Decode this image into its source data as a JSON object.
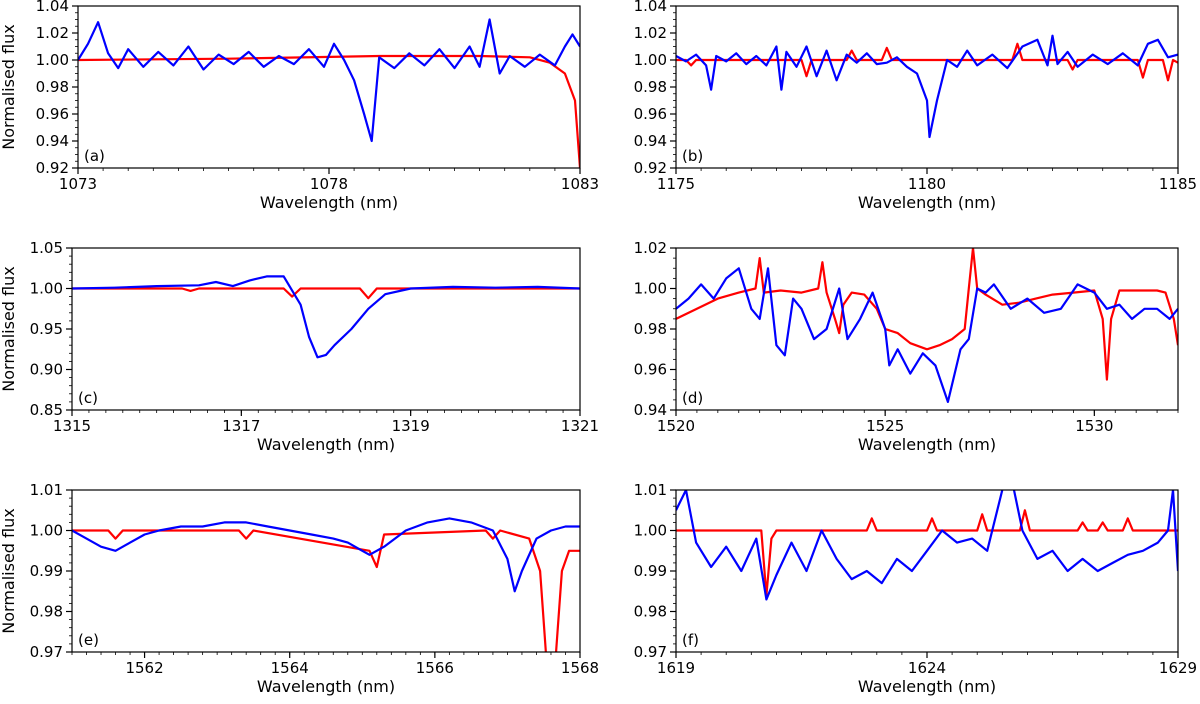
{
  "colors": {
    "model": "#ff0000",
    "observed": "#0000ff",
    "axis": "#000000"
  },
  "chart_data": [
    {
      "type": "line",
      "panel_label": "(a)",
      "xlabel": "Wavelength (nm)",
      "ylabel": "Normalised flux",
      "xlim": [
        1073,
        1083
      ],
      "ylim": [
        0.92,
        1.04
      ],
      "xticks": [
        1073,
        1078,
        1083
      ],
      "xticklabels": [
        "1073",
        "1078",
        "1083"
      ],
      "xminor_step": 0.5,
      "yticks": [
        0.92,
        0.94,
        0.96,
        0.98,
        1.0,
        1.02,
        1.04
      ],
      "yticklabels": [
        "0.92",
        "0.94",
        "0.96",
        "0.98",
        "1.00",
        "1.02",
        "1.04"
      ],
      "yminor_step": 0.005,
      "series": [
        {
          "color": "#ff0000",
          "x": [
            1073,
            1076,
            1079,
            1081,
            1082,
            1082.4,
            1082.7,
            1082.9,
            1083
          ],
          "y": [
            1.0,
            1.001,
            1.003,
            1.003,
            1.002,
            0.998,
            0.99,
            0.97,
            0.92
          ]
        },
        {
          "color": "#0000ff",
          "x": [
            1073,
            1073.2,
            1073.4,
            1073.6,
            1073.8,
            1074.0,
            1074.3,
            1074.6,
            1074.9,
            1075.2,
            1075.5,
            1075.8,
            1076.1,
            1076.4,
            1076.7,
            1077.0,
            1077.3,
            1077.6,
            1077.9,
            1078.1,
            1078.3,
            1078.5,
            1078.7,
            1078.85,
            1079.0,
            1079.3,
            1079.6,
            1079.9,
            1080.2,
            1080.5,
            1080.8,
            1081.0,
            1081.2,
            1081.4,
            1081.6,
            1081.9,
            1082.2,
            1082.5,
            1082.7,
            1082.85,
            1083
          ],
          "y": [
            1.0,
            1.012,
            1.028,
            1.005,
            0.994,
            1.008,
            0.995,
            1.006,
            0.996,
            1.01,
            0.993,
            1.004,
            0.997,
            1.006,
            0.995,
            1.003,
            0.997,
            1.008,
            0.995,
            1.012,
            1.0,
            0.985,
            0.96,
            0.94,
            1.002,
            0.994,
            1.005,
            0.996,
            1.008,
            0.994,
            1.01,
            0.995,
            1.03,
            0.99,
            1.003,
            0.995,
            1.004,
            0.996,
            1.01,
            1.019,
            1.01
          ]
        }
      ]
    },
    {
      "type": "line",
      "panel_label": "(b)",
      "xlabel": "Wavelength (nm)",
      "ylabel": "",
      "xlim": [
        1175,
        1185
      ],
      "ylim": [
        0.92,
        1.04
      ],
      "xticks": [
        1175,
        1180,
        1185
      ],
      "xticklabels": [
        "1175",
        "1180",
        "1185"
      ],
      "xminor_step": 0.5,
      "yticks": [
        0.92,
        0.94,
        0.96,
        0.98,
        1.0,
        1.02,
        1.04
      ],
      "yticklabels": [
        "0.92",
        "0.94",
        "0.96",
        "0.98",
        "1.00",
        "1.02",
        "1.04"
      ],
      "yminor_step": 0.005,
      "series": [
        {
          "color": "#ff0000",
          "x": [
            1175,
            1175.2,
            1175.3,
            1175.4,
            1177.5,
            1177.6,
            1177.7,
            1178.4,
            1178.5,
            1178.6,
            1179.1,
            1179.2,
            1179.3,
            1181.7,
            1181.8,
            1181.9,
            1182.8,
            1182.9,
            1183.0,
            1184.2,
            1184.3,
            1184.4,
            1184.7,
            1184.8,
            1184.9,
            1185
          ],
          "y": [
            1.0,
            1.0,
            0.996,
            1.0,
            1.0,
            0.988,
            1.0,
            1.0,
            1.007,
            1.0,
            1.0,
            1.009,
            1.0,
            1.0,
            1.012,
            1.0,
            1.0,
            0.993,
            1.0,
            1.0,
            0.987,
            1.0,
            1.0,
            0.985,
            1.0,
            0.998
          ]
        },
        {
          "color": "#0000ff",
          "x": [
            1175,
            1175.2,
            1175.4,
            1175.6,
            1175.7,
            1175.8,
            1176.0,
            1176.2,
            1176.4,
            1176.6,
            1176.8,
            1177.0,
            1177.1,
            1177.2,
            1177.4,
            1177.6,
            1177.8,
            1178.0,
            1178.2,
            1178.4,
            1178.6,
            1178.8,
            1179.0,
            1179.2,
            1179.4,
            1179.6,
            1179.8,
            1180.0,
            1180.05,
            1180.2,
            1180.4,
            1180.6,
            1180.8,
            1181.0,
            1181.3,
            1181.6,
            1181.9,
            1182.2,
            1182.4,
            1182.5,
            1182.6,
            1182.8,
            1183.0,
            1183.3,
            1183.6,
            1183.9,
            1184.2,
            1184.4,
            1184.6,
            1184.8,
            1185
          ],
          "y": [
            1.003,
            0.999,
            1.004,
            0.996,
            0.978,
            1.003,
            0.999,
            1.005,
            0.997,
            1.003,
            0.996,
            1.01,
            0.978,
            1.006,
            0.995,
            1.01,
            0.988,
            1.007,
            0.985,
            1.004,
            0.998,
            1.005,
            0.997,
            0.998,
            1.002,
            0.995,
            0.99,
            0.97,
            0.943,
            0.97,
            1.0,
            0.995,
            1.007,
            0.996,
            1.004,
            0.994,
            1.01,
            1.015,
            0.996,
            1.018,
            0.997,
            1.006,
            0.995,
            1.004,
            0.997,
            1.005,
            0.996,
            1.012,
            1.015,
            1.002,
            1.004
          ]
        }
      ]
    },
    {
      "type": "line",
      "panel_label": "(c)",
      "xlabel": "Wavelength (nm)",
      "ylabel": "Normalised flux",
      "xlim": [
        1315,
        1321
      ],
      "ylim": [
        0.85,
        1.05
      ],
      "xticks": [
        1315,
        1317,
        1319,
        1321
      ],
      "xticklabels": [
        "1315",
        "1317",
        "1319",
        "1321"
      ],
      "xminor_step": 0.2,
      "yticks": [
        0.85,
        0.9,
        0.95,
        1.0,
        1.05
      ],
      "yticklabels": [
        "0.85",
        "0.90",
        "0.95",
        "1.00",
        "1.05"
      ],
      "yminor_step": 0.01,
      "series": [
        {
          "color": "#ff0000",
          "x": [
            1315,
            1316.3,
            1316.4,
            1316.5,
            1317.5,
            1317.6,
            1317.7,
            1318.4,
            1318.5,
            1318.6,
            1321
          ],
          "y": [
            1.0,
            1.0,
            0.997,
            1.0,
            1.0,
            0.99,
            1.0,
            1.0,
            0.988,
            1.0,
            1.0
          ]
        },
        {
          "color": "#0000ff",
          "x": [
            1315,
            1315.5,
            1316.0,
            1316.5,
            1316.7,
            1316.9,
            1317.1,
            1317.3,
            1317.5,
            1317.7,
            1317.8,
            1317.9,
            1318.0,
            1318.1,
            1318.3,
            1318.5,
            1318.7,
            1319.0,
            1319.5,
            1320.0,
            1320.5,
            1321
          ],
          "y": [
            1.0,
            1.001,
            1.003,
            1.004,
            1.008,
            1.003,
            1.01,
            1.015,
            1.015,
            0.98,
            0.94,
            0.915,
            0.918,
            0.93,
            0.95,
            0.975,
            0.993,
            1.0,
            1.002,
            1.001,
            1.002,
            1.0
          ]
        }
      ]
    },
    {
      "type": "line",
      "panel_label": "(d)",
      "xlabel": "Wavelength (nm)",
      "ylabel": "",
      "xlim": [
        1520,
        1532
      ],
      "ylim": [
        0.94,
        1.02
      ],
      "xticks": [
        1520,
        1525,
        1530
      ],
      "xticklabels": [
        "1520",
        "1525",
        "1530"
      ],
      "xminor_step": 0.5,
      "yticks": [
        0.94,
        0.96,
        0.98,
        1.0,
        1.02
      ],
      "yticklabels": [
        "0.94",
        "0.96",
        "0.98",
        "1.00",
        "1.02"
      ],
      "yminor_step": 0.005,
      "series": [
        {
          "color": "#ff0000",
          "x": [
            1520,
            1520.5,
            1521,
            1521.5,
            1521.9,
            1522.0,
            1522.1,
            1522.5,
            1523.0,
            1523.4,
            1523.5,
            1523.6,
            1523.8,
            1523.9,
            1524.0,
            1524.2,
            1524.5,
            1524.8,
            1525.0,
            1525.3,
            1525.6,
            1526.0,
            1526.3,
            1526.6,
            1526.9,
            1527.0,
            1527.1,
            1527.2,
            1527.4,
            1527.8,
            1528.2,
            1528.6,
            1529.0,
            1529.5,
            1530.0,
            1530.2,
            1530.3,
            1530.4,
            1530.6,
            1531.0,
            1531.5,
            1531.7,
            1531.9,
            1532
          ],
          "y": [
            0.985,
            0.99,
            0.995,
            0.998,
            1.0,
            1.015,
            0.998,
            0.999,
            0.998,
            1.0,
            1.013,
            0.998,
            0.985,
            0.978,
            0.992,
            0.998,
            0.997,
            0.99,
            0.98,
            0.978,
            0.973,
            0.97,
            0.972,
            0.975,
            0.98,
            1.0,
            1.02,
            1.0,
            0.997,
            0.992,
            0.993,
            0.995,
            0.997,
            0.998,
            0.999,
            0.985,
            0.955,
            0.985,
            0.999,
            0.999,
            0.999,
            0.998,
            0.985,
            0.972
          ]
        },
        {
          "color": "#0000ff",
          "x": [
            1520,
            1520.3,
            1520.6,
            1520.9,
            1521.2,
            1521.5,
            1521.8,
            1522.0,
            1522.2,
            1522.4,
            1522.6,
            1522.8,
            1523.0,
            1523.3,
            1523.6,
            1523.9,
            1524.1,
            1524.4,
            1524.7,
            1525.0,
            1525.1,
            1525.3,
            1525.6,
            1525.9,
            1526.2,
            1526.5,
            1526.8,
            1527.0,
            1527.2,
            1527.4,
            1527.6,
            1528.0,
            1528.4,
            1528.8,
            1529.2,
            1529.6,
            1530.0,
            1530.3,
            1530.6,
            1530.9,
            1531.2,
            1531.5,
            1531.8,
            1532
          ],
          "y": [
            0.99,
            0.995,
            1.002,
            0.995,
            1.005,
            1.01,
            0.99,
            0.985,
            1.01,
            0.972,
            0.967,
            0.995,
            0.99,
            0.975,
            0.98,
            1.0,
            0.975,
            0.985,
            0.998,
            0.98,
            0.962,
            0.97,
            0.958,
            0.968,
            0.962,
            0.944,
            0.97,
            0.975,
            1.0,
            0.998,
            1.002,
            0.99,
            0.995,
            0.988,
            0.99,
            1.002,
            0.998,
            0.99,
            0.992,
            0.985,
            0.99,
            0.99,
            0.985,
            0.99
          ]
        }
      ]
    },
    {
      "type": "line",
      "panel_label": "(e)",
      "xlabel": "Wavelength (nm)",
      "ylabel": "Normalised flux",
      "xlim": [
        1561,
        1568
      ],
      "ylim": [
        0.97,
        1.01
      ],
      "xticks": [
        1562,
        1564,
        1566,
        1568
      ],
      "xticklabels": [
        "1562",
        "1564",
        "1566",
        "1568"
      ],
      "xminor_step": 0.2,
      "yticks": [
        0.97,
        0.98,
        0.99,
        1.0,
        1.01
      ],
      "yticklabels": [
        "0.97",
        "0.98",
        "0.99",
        "1.00",
        "1.01"
      ],
      "yminor_step": 0.002,
      "series": [
        {
          "color": "#ff0000",
          "x": [
            1561,
            1561.5,
            1561.6,
            1561.7,
            1563.3,
            1563.4,
            1563.5,
            1565.1,
            1565.2,
            1565.3,
            1566.7,
            1566.8,
            1566.9,
            1567.3,
            1567.45,
            1567.55,
            1567.65,
            1567.75,
            1567.85,
            1568
          ],
          "y": [
            1.0,
            1.0,
            0.998,
            1.0,
            1.0,
            0.998,
            1.0,
            0.995,
            0.991,
            0.999,
            1.0,
            0.998,
            1.0,
            0.998,
            0.99,
            0.965,
            0.965,
            0.99,
            0.995,
            0.995
          ]
        },
        {
          "color": "#0000ff",
          "x": [
            1561,
            1561.2,
            1561.4,
            1561.6,
            1561.8,
            1562.0,
            1562.2,
            1562.5,
            1562.8,
            1563.1,
            1563.4,
            1563.7,
            1564.0,
            1564.3,
            1564.6,
            1564.8,
            1565.0,
            1565.1,
            1565.3,
            1565.6,
            1565.9,
            1566.2,
            1566.5,
            1566.8,
            1567.0,
            1567.1,
            1567.2,
            1567.4,
            1567.6,
            1567.8,
            1568
          ],
          "y": [
            1.0,
            0.998,
            0.996,
            0.995,
            0.997,
            0.999,
            1.0,
            1.001,
            1.001,
            1.002,
            1.002,
            1.001,
            1.0,
            0.999,
            0.998,
            0.997,
            0.995,
            0.994,
            0.996,
            1.0,
            1.002,
            1.003,
            1.002,
            1.0,
            0.993,
            0.985,
            0.99,
            0.998,
            1.0,
            1.001,
            1.001
          ]
        }
      ]
    },
    {
      "type": "line",
      "panel_label": "(f)",
      "xlabel": "Wavelength (nm)",
      "ylabel": "",
      "xlim": [
        1619,
        1629
      ],
      "ylim": [
        0.97,
        1.01
      ],
      "xticks": [
        1619,
        1624,
        1629
      ],
      "xticklabels": [
        "1619",
        "1624",
        "1629"
      ],
      "xminor_step": 0.5,
      "yticks": [
        0.97,
        0.98,
        0.99,
        1.0,
        1.01
      ],
      "yticklabels": [
        "0.97",
        "0.98",
        "0.99",
        "1.00",
        "1.01"
      ],
      "yminor_step": 0.002,
      "series": [
        {
          "color": "#ff0000",
          "x": [
            1619,
            1620.7,
            1620.8,
            1620.9,
            1621.0,
            1622.8,
            1622.9,
            1623.0,
            1624.0,
            1624.1,
            1624.2,
            1625.0,
            1625.1,
            1625.2,
            1625.85,
            1625.95,
            1626.05,
            1627.0,
            1627.1,
            1627.2,
            1627.4,
            1627.5,
            1627.6,
            1627.9,
            1628.0,
            1628.1,
            1629
          ],
          "y": [
            1.0,
            1.0,
            0.984,
            0.998,
            1.0,
            1.0,
            1.003,
            1.0,
            1.0,
            1.003,
            1.0,
            1.0,
            1.004,
            1.0,
            1.0,
            1.005,
            1.0,
            1.0,
            1.002,
            1.0,
            1.0,
            1.002,
            1.0,
            1.0,
            1.003,
            1.0,
            1.0
          ]
        },
        {
          "color": "#0000ff",
          "x": [
            1619,
            1619.2,
            1619.4,
            1619.7,
            1620.0,
            1620.3,
            1620.6,
            1620.8,
            1621.0,
            1621.3,
            1621.6,
            1621.9,
            1622.2,
            1622.5,
            1622.8,
            1623.1,
            1623.4,
            1623.7,
            1624.0,
            1624.3,
            1624.6,
            1624.9,
            1625.2,
            1625.5,
            1625.7,
            1625.9,
            1626.2,
            1626.5,
            1626.8,
            1627.1,
            1627.4,
            1627.7,
            1628.0,
            1628.3,
            1628.6,
            1628.8,
            1628.9,
            1629
          ],
          "y": [
            1.005,
            1.01,
            0.997,
            0.991,
            0.996,
            0.99,
            0.998,
            0.983,
            0.989,
            0.997,
            0.99,
            1.0,
            0.993,
            0.988,
            0.99,
            0.987,
            0.993,
            0.99,
            0.995,
            1.0,
            0.997,
            0.998,
            0.995,
            1.01,
            1.012,
            1.0,
            0.993,
            0.995,
            0.99,
            0.993,
            0.99,
            0.992,
            0.994,
            0.995,
            0.997,
            1.0,
            1.01,
            0.99
          ]
        }
      ]
    }
  ]
}
